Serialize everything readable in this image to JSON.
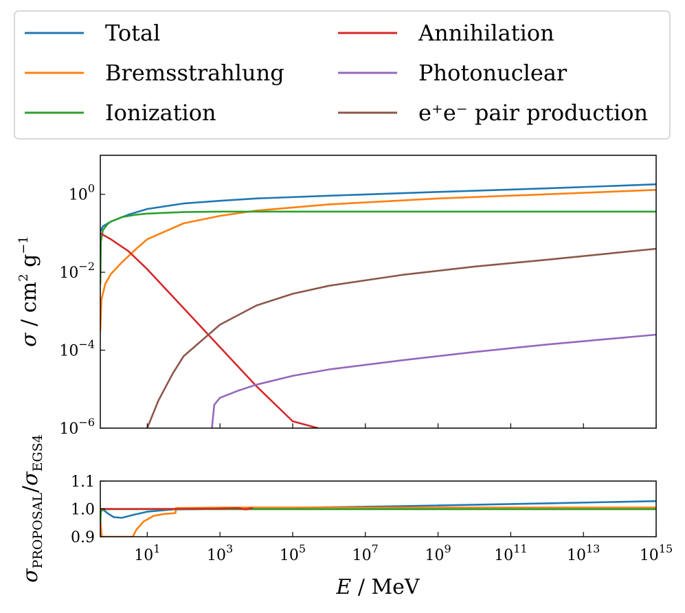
{
  "chart_data": [
    {
      "type": "line",
      "name": "cross-section",
      "x_scale": "log",
      "y_scale": "log",
      "xlim": [
        0.511,
        1000000000000000.0
      ],
      "ylim": [
        1e-06,
        10
      ],
      "xlabel": "E / MeV",
      "ylabel": "σ / cm² g⁻¹",
      "x_ticks": [
        10,
        1000,
        100000,
        10000000,
        1000000000,
        100000000000,
        10000000000000,
        1000000000000000
      ],
      "y_ticks": [
        {
          "value": 1,
          "base": "10",
          "exp": "0"
        },
        {
          "value": 0.01,
          "base": "10",
          "exp": "−2"
        },
        {
          "value": 0.0001,
          "base": "10",
          "exp": "−4"
        },
        {
          "value": 1e-06,
          "base": "10",
          "exp": "−6"
        }
      ],
      "series": [
        {
          "name": "Total",
          "color": "#1f77b4",
          "x": [
            0.511,
            0.6,
            1,
            3,
            10,
            100,
            1000,
            10000.0,
            1000000.0,
            1000000000.0,
            1000000000000.0,
            1000000000000000.0
          ],
          "y": [
            0.11,
            0.15,
            0.2,
            0.3,
            0.42,
            0.58,
            0.68,
            0.78,
            0.92,
            1.15,
            1.42,
            1.8
          ]
        },
        {
          "name": "Bremsstrahlung",
          "color": "#ff7f0e",
          "x": [
            0.511,
            0.55,
            0.7,
            1,
            2,
            5,
            10,
            100,
            1000,
            10000.0,
            1000000.0,
            1000000000.0,
            1000000000000.0,
            1000000000000000.0
          ],
          "y": [
            0.0003,
            0.002,
            0.005,
            0.009,
            0.018,
            0.04,
            0.07,
            0.18,
            0.28,
            0.38,
            0.55,
            0.78,
            1.0,
            1.3
          ]
        },
        {
          "name": "Ionization",
          "color": "#2ca02c",
          "x": [
            0.511,
            0.53,
            0.6,
            0.8,
            1,
            2,
            5,
            10,
            100,
            1000,
            1000000.0,
            1000000000000000.0
          ],
          "y": [
            0.005,
            0.06,
            0.12,
            0.17,
            0.2,
            0.26,
            0.3,
            0.32,
            0.35,
            0.36,
            0.36,
            0.36
          ]
        },
        {
          "name": "Annihilation",
          "color": "#d62728",
          "x": [
            0.511,
            1,
            3,
            10,
            100,
            1000,
            10000.0,
            100000.0,
            500000.0
          ],
          "y": [
            0.1,
            0.07,
            0.035,
            0.012,
            0.0012,
            0.00012,
            1.2e-05,
            1.5e-06,
            1e-06
          ]
        },
        {
          "name": "Photonuclear",
          "color": "#9467bd",
          "x": [
            600,
            700,
            1000,
            3000,
            10000.0,
            100000.0,
            1000000.0,
            100000000.0,
            10000000000.0,
            1000000000000.0,
            1000000000000000.0
          ],
          "y": [
            1e-06,
            4e-06,
            6e-06,
            9e-06,
            1.3e-05,
            2.2e-05,
            3.2e-05,
            5.5e-05,
            9e-05,
            0.00014,
            0.00025
          ]
        },
        {
          "name": "e⁺e⁻ pair production",
          "color": "#8c564b",
          "x": [
            10,
            20,
            50,
            100,
            1000,
            10000.0,
            100000.0,
            1000000.0,
            100000000.0,
            10000000000.0,
            1000000000000.0,
            1000000000000000.0
          ],
          "y": [
            1e-06,
            5e-06,
            2.5e-05,
            7e-05,
            0.00045,
            0.0014,
            0.0028,
            0.0045,
            0.0085,
            0.014,
            0.021,
            0.04
          ]
        }
      ]
    },
    {
      "type": "line",
      "name": "ratio",
      "x_scale": "log",
      "ylim": [
        0.9,
        1.1
      ],
      "xlabel": "E / MeV",
      "ylabel": "σ_PROPOSAL / σ_EGS4",
      "y_ticks": [
        "0.9",
        "1.0",
        "1.1"
      ],
      "series": [
        {
          "name": "Total",
          "color": "#1f77b4",
          "x": [
            0.511,
            0.6,
            0.8,
            1.2,
            2,
            4,
            10,
            50,
            10000.0,
            100000000.0,
            1000000000000.0,
            1000000000000000.0
          ],
          "y": [
            0.99,
            0.998,
            0.985,
            0.97,
            0.968,
            0.978,
            0.99,
            0.998,
            1.002,
            1.01,
            1.02,
            1.028
          ]
        },
        {
          "name": "Bremsstrahlung",
          "color": "#ff7f0e",
          "x": [
            0.511,
            0.53,
            0.56,
            4,
            5,
            8,
            15,
            30,
            60,
            61,
            1000,
            1000000000000000.0
          ],
          "y": [
            0.965,
            0.94,
            0.9,
            0.9,
            0.925,
            0.955,
            0.975,
            0.982,
            0.985,
            1.003,
            1.005,
            1.005
          ]
        },
        {
          "name": "Ionization",
          "color": "#2ca02c",
          "x": [
            0.511,
            0.53,
            0.6,
            1,
            10,
            1000000000000000.0
          ],
          "y": [
            0.95,
            0.99,
            0.998,
            0.999,
            0.999,
            0.999
          ]
        },
        {
          "name": "Annihilation",
          "color": "#d62728",
          "x": [
            0.511,
            10,
            100,
            1000,
            3000,
            5000,
            8000
          ],
          "y": [
            1.0,
            1.0,
            1.0,
            1.001,
            1.003,
            0.998,
            1.004
          ]
        }
      ]
    }
  ],
  "shared_x_ticks": [
    {
      "value": 10,
      "exp": "1"
    },
    {
      "value": 1000,
      "exp": "3"
    },
    {
      "value": 100000,
      "exp": "5"
    },
    {
      "value": 10000000,
      "exp": "7"
    },
    {
      "value": 1000000000,
      "exp": "9"
    },
    {
      "value": 100000000000,
      "exp": "11"
    },
    {
      "value": 10000000000000,
      "exp": "13"
    },
    {
      "value": 1000000000000000,
      "exp": "15"
    }
  ],
  "legend": {
    "placement": "top",
    "entries": [
      {
        "label": "Total",
        "color": "#1f77b4"
      },
      {
        "label": "Bremsstrahlung",
        "color": "#ff7f0e"
      },
      {
        "label": "Ionization",
        "color": "#2ca02c"
      },
      {
        "label": "Annihilation",
        "color": "#d62728"
      },
      {
        "label": "Photonuclear",
        "color": "#9467bd"
      },
      {
        "label": "e⁺e⁻ pair production",
        "color": "#8c564b"
      }
    ]
  },
  "labels": {
    "x_axis": {
      "var": "E",
      "rest": " / MeV"
    },
    "y_top": {
      "var": "σ",
      "rest": " / cm",
      "sq": "2",
      "g": " g",
      "inv": "−1"
    },
    "y_bottom": {
      "num": "σ",
      "num_sub": "PROPOSAL",
      "slash": "/",
      "den": "σ",
      "den_sub": "EGS4"
    }
  }
}
